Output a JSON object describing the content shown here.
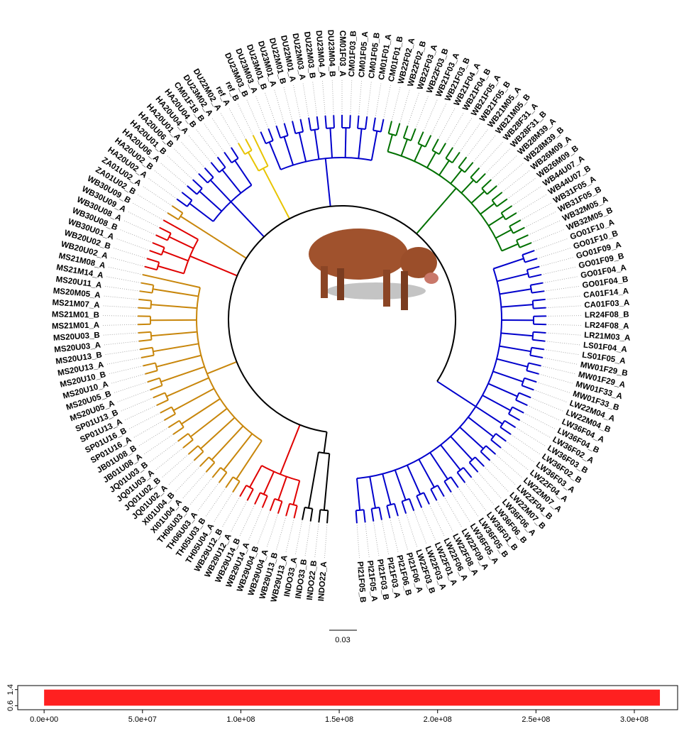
{
  "tree": {
    "scale_bar": "0.03",
    "clades": [
      {
        "color": "#000000",
        "leaves": [
          "INDO22_A",
          "INDO22_B",
          "INDO33_B",
          "INDO33_A"
        ]
      },
      {
        "color": "#e00000",
        "leaves": [
          "WB29U13_A",
          "WB29U13_B",
          "WB29U04_A",
          "WB29U04_B",
          "WB29U14_A",
          "WB29U14_B",
          "WB29U12_A",
          "WB29U12_B"
        ]
      },
      {
        "color": "#c8860b",
        "leaves": [
          "TH05U04_A",
          "TH05U03_B",
          "TH06U03_A",
          "TH06U03_B",
          "XI01U04_A",
          "XI01U04_B",
          "JQ01U02_A",
          "JQ01U02_B",
          "JQ01U03_A",
          "JQ01U03_B",
          "JB01U08_A",
          "JB01U08_B",
          "SP01U16_A",
          "SP01U16_B",
          "SP01U13_A",
          "SP01U13_B",
          "MS20U05_A",
          "MS20U05_B",
          "MS20U10_A",
          "MS20U10_B",
          "MS20U13_A",
          "MS20U13_B",
          "MS20U03_A",
          "MS20U03_B",
          "MS21M01_A",
          "MS21M01_B",
          "MS21M07_A",
          "MS20M05_A",
          "MS20U11_A",
          "MS21M14_A",
          "MS21M08_A"
        ]
      },
      {
        "color": "#e00000",
        "leaves": [
          "WB20U02_A",
          "WB20U02_B",
          "WB30U01_A",
          "WB30U08_B",
          "WB30U08_A",
          "WB30U09_A",
          "WB30U09_B"
        ]
      },
      {
        "color": "#c8860b",
        "leaves": [
          "ZA01U02_B",
          "ZA01U02_A"
        ]
      },
      {
        "color": "#0000cc",
        "leaves": [
          "HA20U02_A",
          "HA20U02_B",
          "HA20U06_A",
          "HA20U01_B",
          "HA20U06_B",
          "HA20U01_A",
          "HA20U04_A",
          "HA20U04_B",
          "CM01F18_B",
          "DU23M02_A"
        ]
      },
      {
        "color": "#e8c400",
        "leaves": [
          "DU22M02_A",
          "ref_A",
          "ref_B"
        ]
      },
      {
        "color": "#0000cc",
        "leaves": [
          "DU23M03_B",
          "DU23M03_A",
          "DU23M01_B",
          "DU23M01_A",
          "DU22M01_B",
          "DU22M01_A",
          "DU22M03_A",
          "DU22M03_B",
          "DU23M04_A",
          "DU23M04_B",
          "CM01F03_A",
          "CM01F03_B",
          "CM01F05_A",
          "CM01F05_B",
          "CM01F01_A",
          "CM01F01_B"
        ]
      },
      {
        "color": "#007000",
        "leaves": [
          "WB22F02_A",
          "WB22F02_B",
          "WB22F03_A",
          "WB22F03_B",
          "WB21F03_A",
          "WB21F03_B",
          "WB21F04_A",
          "WB21F04_B",
          "WB21F05_A",
          "WB21F05_B",
          "WB21M05_A",
          "WB21M05_B",
          "WB28F31_A",
          "WB28F31_B",
          "WB28M39_A",
          "WB28M39_B",
          "WB26M09_A",
          "WB26M09_B",
          "WB44U07_A",
          "WB44U07_B",
          "WB31F05_A",
          "WB31F05_B",
          "WB32M05_A",
          "WB32M05_B"
        ]
      },
      {
        "color": "#0000cc",
        "leaves": [
          "GO01F10_A",
          "GO01F10_B",
          "GO01F09_A",
          "GO01F09_B",
          "GO01F04_A",
          "GO01F04_B",
          "CA01F14_A",
          "CA01F03_A",
          "LR24F08_B",
          "LR24F08_A",
          "LR21M03_A",
          "LS01F04_A",
          "LS01F05_A",
          "MW01F29_B",
          "MW01F29_A",
          "MW01F33_A",
          "MW01F33_B",
          "LW22M04_A",
          "LW22M04_B",
          "LW36F04_A",
          "LW36F04_B",
          "LW36F02_A",
          "LW36F03_B",
          "LW36F02_B",
          "LW36F03_A",
          "LW22F04_A",
          "LW22M07_A",
          "LW22F04_B",
          "LW22M07_B",
          "LW36F06_A",
          "LW36F06_B",
          "LW36F01_B",
          "LW36F05_B",
          "LW36F05_A",
          "LW22F09_A",
          "LW22F08_A",
          "LW22F06_A",
          "LW22F01_A",
          "LW22F03_A",
          "LW22F03_B",
          "PI21F06_A",
          "PI21F06_B",
          "PI21F03_A",
          "PI21F03_B",
          "PI21F05_A",
          "PI21F05_B"
        ]
      }
    ]
  },
  "chart_data": {
    "type": "strip",
    "xlim": [
      -13400000,
      322000000
    ],
    "ylim": [
      0.4,
      1.6
    ],
    "xticks": [
      {
        "value": 0,
        "label": "0.0e+00"
      },
      {
        "value": 50000000,
        "label": "5.0e+07"
      },
      {
        "value": 100000000,
        "label": "1.0e+08"
      },
      {
        "value": 150000000,
        "label": "1.5e+08"
      },
      {
        "value": 200000000,
        "label": "2.0e+08"
      },
      {
        "value": 250000000,
        "label": "2.5e+08"
      },
      {
        "value": 300000000,
        "label": "3.0e+08"
      }
    ],
    "yticks": [
      0.6,
      1.4
    ],
    "span": [
      0,
      313000000
    ],
    "color": "#ff2020"
  }
}
